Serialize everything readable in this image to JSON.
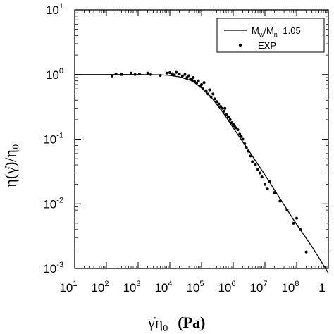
{
  "chart_data": {
    "type": "line",
    "x_scale": "log",
    "y_scale": "log",
    "xlim": [
      10,
      1000000000
    ],
    "ylim": [
      0.001,
      10
    ],
    "x_ticks": [
      {
        "base": "10",
        "exp": "1"
      },
      {
        "base": "10",
        "exp": "2"
      },
      {
        "base": "10",
        "exp": "3"
      },
      {
        "base": "10",
        "exp": "4"
      },
      {
        "base": "10",
        "exp": "5"
      },
      {
        "base": "10",
        "exp": "6"
      },
      {
        "base": "10",
        "exp": "7"
      },
      {
        "base": "10",
        "exp": "8"
      },
      {
        "base": "1",
        "exp": ""
      }
    ],
    "y_ticks": [
      {
        "base": "10",
        "exp": "1"
      },
      {
        "base": "10",
        "exp": "0"
      },
      {
        "base": "10",
        "exp": "-1"
      },
      {
        "base": "10",
        "exp": "-2"
      },
      {
        "base": "10",
        "exp": "-3"
      }
    ],
    "xlabel": {
      "symbol": "γ̇η",
      "sub": "0",
      "unit": "(Pa)"
    },
    "ylabel": "η(γ̇)/η₀",
    "grid": false,
    "legend_position": "top-right",
    "legend": [
      {
        "main": "M",
        "sub1": "w",
        "mid": "/M",
        "sub2": "n",
        "tail": "=1.05",
        "style": "line"
      },
      {
        "text": "EXP",
        "style": "dot"
      }
    ],
    "series": [
      {
        "name": "Mw/Mn=1.05",
        "style": "line",
        "x": [
          10,
          100,
          1000,
          5000,
          10000,
          20000,
          50000,
          100000,
          200000,
          500000,
          1000000,
          3000000,
          10000000,
          30000000,
          100000000,
          300000000,
          1000000000
        ],
        "y": [
          1.0,
          1.0,
          1.0,
          0.99,
          0.97,
          0.92,
          0.8,
          0.62,
          0.45,
          0.25,
          0.15,
          0.068,
          0.028,
          0.012,
          0.0048,
          0.0022,
          0.00085
        ]
      },
      {
        "name": "EXP",
        "style": "scatter",
        "x": [
          150,
          200,
          300,
          600,
          800,
          1100,
          2000,
          2500,
          5000,
          8000,
          10000,
          12000,
          14000,
          16000,
          20000,
          25000,
          30000,
          35000,
          40000,
          45000,
          50000,
          55000,
          60000,
          70000,
          80000,
          90000,
          100000,
          110000,
          120000,
          140000,
          160000,
          180000,
          200000,
          230000,
          260000,
          300000,
          350000,
          400000,
          450000,
          500000,
          550000,
          600000,
          700000,
          800000,
          900000,
          1000000,
          1100000,
          1200000,
          1400000,
          1600000,
          1800000,
          2000000,
          2300000,
          2600000,
          3000000,
          3500000,
          4000000,
          5000000,
          6000000,
          7000000,
          8000000,
          10000000,
          12000000,
          14000000,
          20000000,
          30000000,
          50000000,
          80000000,
          100000000,
          130000000,
          200000000
        ],
        "y": [
          0.95,
          1.02,
          1.0,
          1.05,
          1.0,
          1.02,
          1.05,
          1.0,
          0.97,
          1.05,
          1.07,
          1.03,
          0.98,
          1.08,
          1.02,
          0.95,
          1.0,
          0.9,
          0.96,
          0.85,
          0.82,
          0.9,
          0.78,
          0.74,
          0.8,
          0.66,
          0.7,
          0.6,
          0.75,
          0.55,
          0.5,
          0.58,
          0.45,
          0.5,
          0.42,
          0.38,
          0.35,
          0.32,
          0.3,
          0.27,
          0.3,
          0.24,
          0.22,
          0.2,
          0.18,
          0.17,
          0.16,
          0.15,
          0.14,
          0.12,
          0.11,
          0.1,
          0.085,
          0.075,
          0.065,
          0.055,
          0.045,
          0.04,
          0.034,
          0.03,
          0.026,
          0.02,
          0.017,
          0.022,
          0.015,
          0.011,
          0.008,
          0.005,
          0.006,
          0.004,
          0.0018
        ]
      }
    ]
  }
}
